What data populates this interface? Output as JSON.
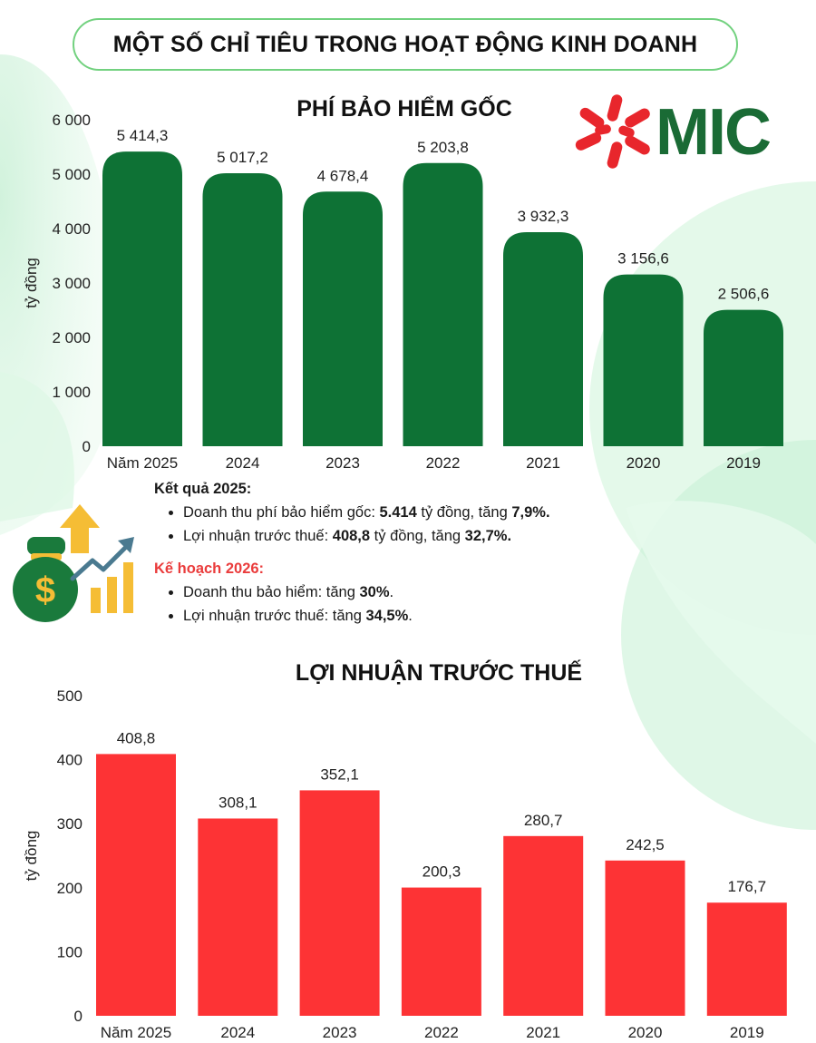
{
  "header": {
    "title": "MỘT SỐ CHỈ TIÊU TRONG HOẠT ĐỘNG KINH DOANH"
  },
  "logo": {
    "text": "MIC",
    "color": "#1a6b35",
    "mark_color": "#e8262c"
  },
  "colors": {
    "green_bar": "#0e7235",
    "red_bar": "#fd3335",
    "accent_red": "#ea3c3c",
    "pill_border": "#72d17f"
  },
  "result": {
    "heading": "Kết quả 2025:",
    "items": [
      {
        "prefix": "Doanh thu phí bảo hiểm gốc: ",
        "v1": "5.414",
        "mid": " tỷ đồng, tăng ",
        "v2": "7,9%."
      },
      {
        "prefix": "Lợi nhuận trước thuế: ",
        "v1": "408,8",
        "mid": " tỷ đồng, tăng ",
        "v2": "32,7%."
      }
    ]
  },
  "plan": {
    "heading": "Kế hoạch 2026:",
    "items": [
      {
        "prefix": "Doanh thu bảo hiểm: tăng ",
        "v1": "30%",
        "suffix": "."
      },
      {
        "prefix": "Lợi nhuận trước thuế: tăng ",
        "v1": "34,5%",
        "suffix": "."
      }
    ]
  },
  "chart_data": [
    {
      "type": "bar",
      "title": "PHÍ BẢO HIỂM GỐC",
      "ylabel": "tỷ đồng",
      "xlabel": "",
      "categories": [
        "Năm 2025",
        "2024",
        "2023",
        "2022",
        "2021",
        "2020",
        "2019"
      ],
      "values": [
        5414.3,
        5017.2,
        4678.4,
        5203.8,
        3932.3,
        3156.6,
        2506.6
      ],
      "value_labels": [
        "5 414,3",
        "5 017,2",
        "4 678,4",
        "5 203,8",
        "3 932,3",
        "3 156,6",
        "2 506,6"
      ],
      "ylim": [
        0,
        6000
      ],
      "yticks": [
        0,
        1000,
        2000,
        3000,
        4000,
        5000,
        6000
      ],
      "ytick_labels": [
        "0",
        "1 000",
        "2 000",
        "3 000",
        "4 000",
        "5 000",
        "6 000"
      ],
      "grid": false,
      "bar_color": "#0e7235",
      "rounded_tops": true
    },
    {
      "type": "bar",
      "title": "LỢI NHUẬN TRƯỚC THUẾ",
      "ylabel": "tỷ đồng",
      "xlabel": "",
      "categories": [
        "Năm 2025",
        "2024",
        "2023",
        "2022",
        "2021",
        "2020",
        "2019"
      ],
      "values": [
        408.8,
        308.1,
        352.1,
        200.3,
        280.7,
        242.5,
        176.7
      ],
      "value_labels": [
        "408,8",
        "308,1",
        "352,1",
        "200,3",
        "280,7",
        "242,5",
        "176,7"
      ],
      "ylim": [
        0,
        500
      ],
      "yticks": [
        0,
        100,
        200,
        300,
        400,
        500
      ],
      "ytick_labels": [
        "0",
        "100",
        "200",
        "300",
        "400",
        "500"
      ],
      "grid": false,
      "bar_color": "#fd3335",
      "rounded_tops": false
    }
  ]
}
